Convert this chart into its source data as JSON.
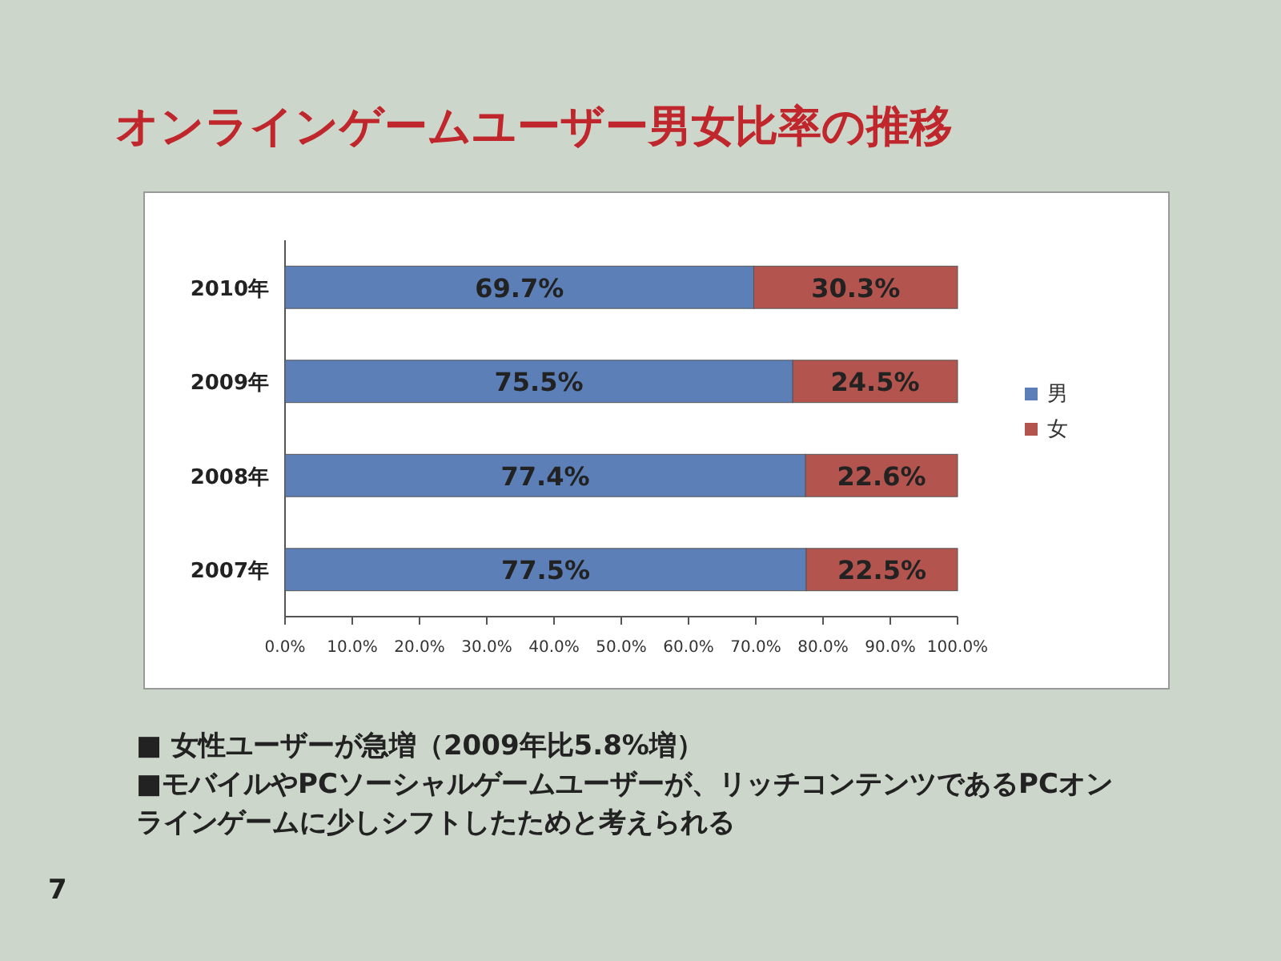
{
  "chart_data": {
    "type": "bar",
    "title": "オンラインゲームユーザー男女比率の推移",
    "orientation": "horizontal",
    "stacked": true,
    "categories": [
      "2010年",
      "2009年",
      "2008年",
      "2007年"
    ],
    "series": [
      {
        "name": "男",
        "color": "#5b7fb6",
        "values": [
          69.7,
          75.5,
          77.4,
          77.5
        ],
        "value_labels": [
          "69.7%",
          "75.5%",
          "77.4%",
          "77.5%"
        ]
      },
      {
        "name": "女",
        "color": "#b3554e",
        "values": [
          30.3,
          24.5,
          22.6,
          22.5
        ],
        "value_labels": [
          "30.3%",
          "24.5%",
          "22.6%",
          "22.5%"
        ]
      }
    ],
    "xlim": [
      0,
      100
    ],
    "xticks": [
      {
        "value": 0,
        "label": "0.0%"
      },
      {
        "value": 10,
        "label": "10.0%"
      },
      {
        "value": 20,
        "label": "20.0%"
      },
      {
        "value": 30,
        "label": "30.0%"
      },
      {
        "value": 40,
        "label": "40.0%"
      },
      {
        "value": 50,
        "label": "50.0%"
      },
      {
        "value": 60,
        "label": "60.0%"
      },
      {
        "value": 70,
        "label": "70.0%"
      },
      {
        "value": 80,
        "label": "80.0%"
      },
      {
        "value": 90,
        "label": "90.0%"
      },
      {
        "value": 100,
        "label": "100.0%"
      }
    ],
    "legend": "right",
    "annotations": [
      "■ 女性ユーザーが急増（2009年比5.8%増）",
      "■モバイルやPCソーシャルゲームユーザーが、リッチコンテンツであるPCオンラインゲームに少しシフトしたためと考えられる",
      "7"
    ]
  }
}
